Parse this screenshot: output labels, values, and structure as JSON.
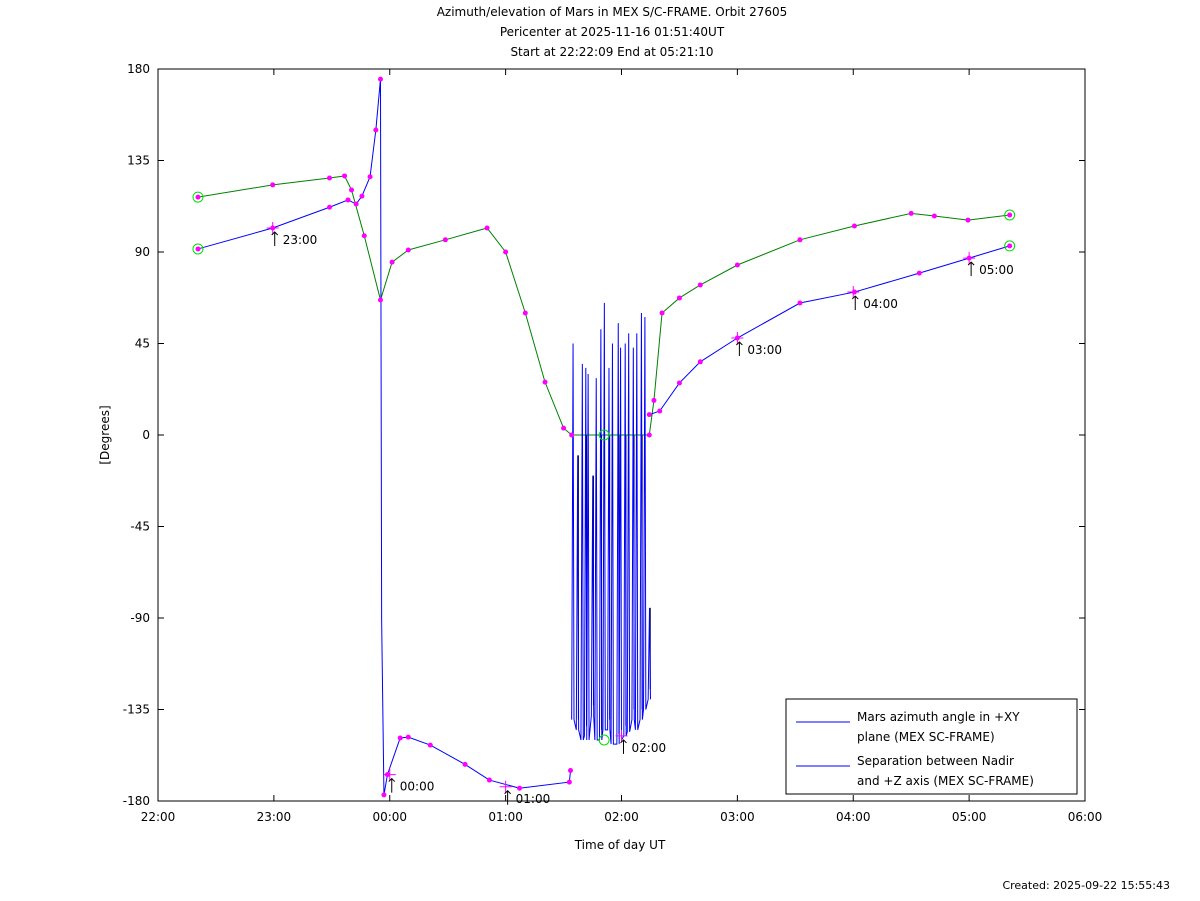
{
  "chart_data": {
    "type": "line",
    "title": [
      "Azimuth/elevation of Mars in MEX S/C-FRAME.  Orbit 27605",
      "Pericenter at 2025-11-16 01:51:40UT",
      "Start at 22:22:09 End at 05:21:10"
    ],
    "xlabel": "Time of day UT",
    "ylabel": "[Degrees]",
    "x_units": "hours since 22:00",
    "xlim": [
      0,
      8
    ],
    "ylim": [
      -180,
      180
    ],
    "xticks": [
      0,
      1,
      2,
      3,
      4,
      5,
      6,
      7,
      8
    ],
    "xtick_labels": [
      "22:00",
      "23:00",
      "00:00",
      "01:00",
      "02:00",
      "03:00",
      "04:00",
      "05:00",
      "06:00"
    ],
    "yticks": [
      180,
      135,
      90,
      45,
      0,
      -45,
      -90,
      -135,
      -180
    ],
    "ytick_labels": [
      "180",
      "135",
      "90",
      "45",
      "0",
      "-45",
      "-90",
      "-135",
      "-180"
    ],
    "legend_position": "bottom-right",
    "series": [
      {
        "name": "Mars azimuth angle in +XY plane (MEX SC-FRAME)",
        "legend": [
          "Mars azimuth angle in +XY",
          "plane (MEX SC-FRAME)"
        ],
        "color": "#0000ff",
        "x": [
          0.345,
          0.99,
          1.48,
          1.64,
          1.71,
          1.76,
          1.83,
          1.88,
          1.92,
          1.93,
          1.95,
          1.98,
          2.09,
          2.16,
          2.35,
          2.65,
          2.86,
          3.12,
          3.55,
          3.56
        ],
        "y": [
          91.5,
          101.8,
          112,
          115.6,
          113.6,
          117.5,
          127,
          150,
          175,
          -91,
          -177,
          -167,
          -149,
          -148.6,
          -152.5,
          -162,
          -169.7,
          -173.7,
          -170.7,
          -165
        ],
        "oscillation": {
          "x": [
            3.57,
            3.61,
            3.65,
            3.68,
            3.7,
            3.74,
            3.77,
            3.81,
            3.84,
            3.88,
            3.91,
            3.96,
            3.98,
            4.02,
            4.05,
            4.09,
            4.12,
            4.16,
            4.19,
            4.23
          ],
          "top": [
            45,
            -10,
            35,
            33,
            30,
            -20,
            28,
            52,
            65,
            33,
            45,
            55,
            43,
            45,
            50,
            43,
            50,
            60,
            58,
            -85
          ],
          "bottom": [
            -140,
            -145,
            -150,
            -148,
            -150,
            -138,
            -150,
            -150,
            -145,
            -145,
            -152,
            -152,
            -150,
            -148,
            -146,
            -140,
            -145,
            -140,
            -135,
            -130
          ]
        },
        "x2": [
          4.24,
          4.33,
          4.5,
          4.68,
          5.0,
          5.54,
          6.01,
          6.57,
          7.0,
          7.35
        ],
        "y2": [
          10,
          11.8,
          25.6,
          36,
          47.7,
          64.9,
          70.3,
          79.6,
          87,
          93
        ]
      },
      {
        "name": "Separation between Nadir and +Z axis (MEX SC-FRAME)",
        "legend": [
          "Separation between Nadir",
          "and +Z axis (MEX SC-FRAME)"
        ],
        "color": "#008000",
        "x": [
          0.345,
          0.99,
          1.48,
          1.61,
          1.67,
          1.78,
          1.92,
          2.02,
          2.16,
          2.48,
          2.84,
          3.0,
          3.17,
          3.34,
          3.5,
          3.57,
          4.24,
          4.28,
          4.35,
          4.5,
          4.68,
          5.0,
          5.54,
          6.01,
          6.5,
          6.7,
          6.99,
          7.35
        ],
        "y": [
          117,
          123,
          126.4,
          127.4,
          120.5,
          98,
          66.4,
          85,
          91,
          96,
          101.8,
          90,
          60,
          26,
          3.4,
          0,
          0,
          17,
          60,
          67.4,
          73.8,
          83.6,
          96,
          102.8,
          109,
          107.7,
          105.7,
          108.2
        ]
      }
    ],
    "annotations": [
      {
        "label": "23:00",
        "x": 0.99,
        "y": 101.8
      },
      {
        "label": "00:00",
        "x": 2.0,
        "y": -167
      },
      {
        "label": "01:00",
        "x": 3.0,
        "y": -173
      },
      {
        "label": "02:00",
        "x": 4.0,
        "y": -148
      },
      {
        "label": "03:00",
        "x": 5.0,
        "y": 47.7
      },
      {
        "label": "04:00",
        "x": 6.0,
        "y": 70.3
      },
      {
        "label": "05:00",
        "x": 7.0,
        "y": 87
      }
    ],
    "circle_markers": [
      {
        "x": 0.345,
        "y": 91.5
      },
      {
        "x": 0.345,
        "y": 117
      },
      {
        "x": 7.35,
        "y": 93
      },
      {
        "x": 7.35,
        "y": 108.2
      },
      {
        "x": 3.85,
        "y": 0
      },
      {
        "x": 3.85,
        "y": -150
      }
    ]
  },
  "footer": {
    "created": "Created: 2025-09-22 15:55:43"
  }
}
